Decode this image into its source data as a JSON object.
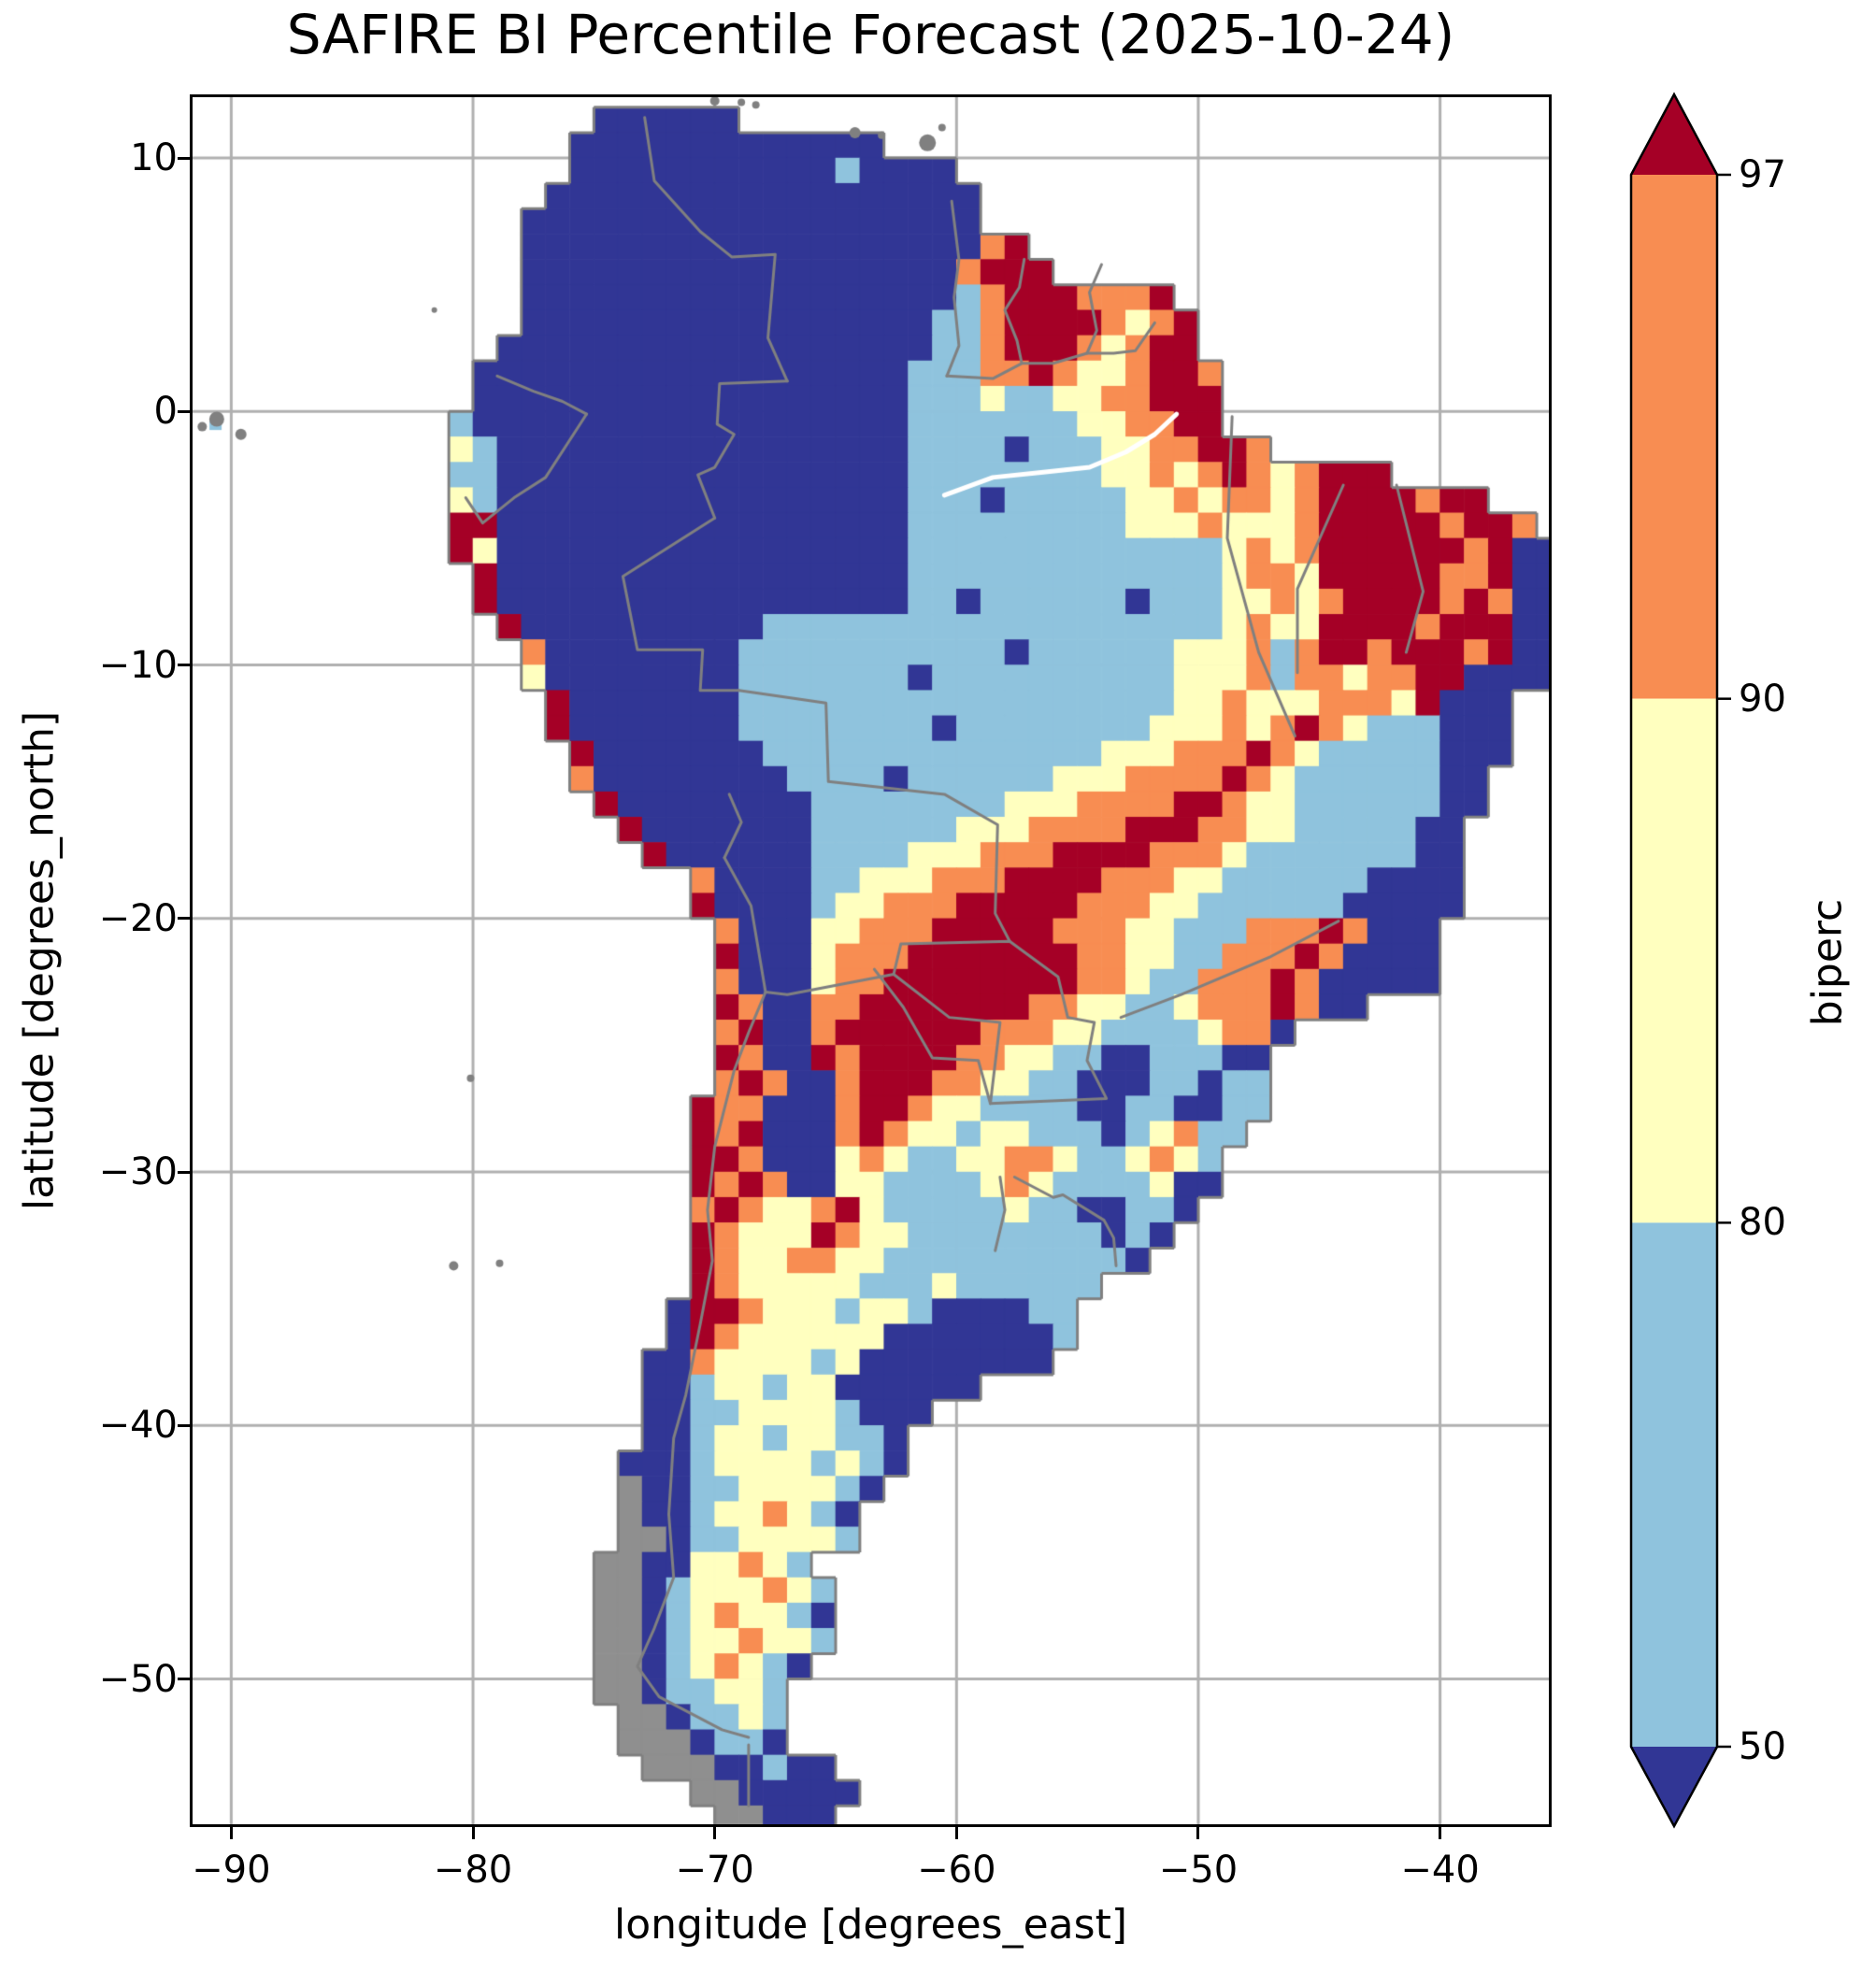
{
  "title": "SAFIRE BI Percentile Forecast (2025-10-24)",
  "axes": {
    "xlabel": "longitude [degrees_east]",
    "ylabel": "latitude [degrees_north]",
    "xticks": [
      -90,
      -80,
      -70,
      -60,
      -50,
      -40
    ],
    "yticks": [
      10,
      0,
      -10,
      -20,
      -30,
      -40,
      -50
    ]
  },
  "colorbar": {
    "label": "biperc",
    "levels": [
      "97",
      "90",
      "80",
      "50"
    ],
    "extend": "both"
  },
  "chart_data": {
    "type": "heatmap",
    "title": "SAFIRE BI Percentile Forecast (2025-10-24)",
    "xlabel": "longitude [degrees_east]",
    "ylabel": "latitude [degrees_north]",
    "variable": "biperc",
    "xlim": [
      -91.6,
      -35.5
    ],
    "ylim": [
      -55.73,
      12.4
    ],
    "xticks": [
      -90,
      -80,
      -70,
      -60,
      -50,
      -40
    ],
    "yticks": [
      10,
      0,
      -10,
      -20,
      -30,
      -40,
      -50
    ],
    "grid_on": true,
    "levels": [
      50,
      80,
      90,
      97
    ],
    "classes": [
      {
        "range": "< 50",
        "color": "#313695"
      },
      {
        "range": "50-80",
        "color": "#8fc3dd"
      },
      {
        "range": "80-90",
        "color": "#ffffbf"
      },
      {
        "range": "90-97",
        "color": "#f88d52"
      },
      {
        "range": "> 97",
        "color": "#a50026"
      }
    ],
    "colors": {
      "grid": "#b0b0b0",
      "coast": "#808080",
      "border": "#808080",
      "no_data_land": "#8f8f8f",
      "frame": "#000000",
      "sea": "#ffffff"
    },
    "raster": {
      "lon0": -82,
      "lat0": 12,
      "dlon": 1,
      "dlat": -1,
      "ncols": 47,
      "nrows": 68,
      "legend": {
        ".": "sea",
        "B": "<50",
        "b": "50-80",
        "y": "80-90",
        "o": "90-97",
        "r": ">97",
        "g": "no-data-land"
      },
      "cell_colors": {
        "B": "#313695",
        "b": "#8fc3dd",
        "y": "#ffffbf",
        "o": "#f88d52",
        "r": "#a50026",
        "g": "#8f8f8f"
      },
      "rows_rle": [
        "7.6B34.",
        "6.13B28.",
        "6.11B1b4B25.",
        "5.18B24.",
        "4.19B24.",
        "4.19B1o1r22.",
        "4.18B1o3r21.",
        "4.18B1b1o3r3o1r16.",
        "4.17B2b1o4r1o1y1o1r15.",
        "3.18B2b1o3r1o1y1o2r15.",
        "2.18B3b2o1r1o2y1o2r1o14.",
        "2.18B3b1y2b2y2o3r14.",
        "1.1b18B7b2y2o2r14.",
        "1.1y1b17B4b1B3b2y2o2r1o12.",
        "1.2b17B8b2y1o1y1o1r1o1y1o3r7.",
        "1.1y1b17B3b1B5b2y1o1y2o1y1o4r1o2r3.",
        "1.2r17B9b3y1o3y1o5r1o2r1o1.",
        "1.1r1y17B13b1y1o1y1o6r1o1r2B",
        "2.1r17B13b1y2o1y5r2o1r2B",
        "2.1r17B2b1B6b1B3b2y1o1y1o4r1o1r1o2B",
        "3.1r10B19b1y1o2y4r1o3r2B",
        "4.1o8B11b1B6b3y1o1b1o2r1o3r1o1r2B",
        "4.1y8B7b1B10b3y1o1b2o1y2o2r4B",
        "5.1r7B18b2y1o3y3o1y1r3B2.",
        "5.1r7B8b1B8b3y1o1y1o1r1o1y3b3B2.",
        "6.1r7B14b3y3o1r1o1y5b3B2.",
        "6.1o8B4b1B6b3y4o1r1o1y6b2B3.",
        "7.1r8B8b3y4o2r1o2y6b2B3.",
        "8.1r7B6b3y4o3r2o2y5b2B4.",
        "9.1r6B4b3y3o4r3o1y7b2B4.",
        "11.1o4B2b3y3o4r3o2y6b4B4.",
        "11.1r4B1b2y3o5r3o2y6b5B4.",
        "12.1o3B2y3o5r3o2y3b3o1r1o3B5.",
        "12.1r3B1y3o7r2o2y2b3o1r1o4B5.",
        "12.1o3B1y2o8r2o1y2b3o1r1o5B5.",
        "12.1r1o2B2o7r2o2y2b1y3o1r1o2B8.",
        "12.1o1r2B1o6r3o2y4b1y2o1B11.",
        "12.1r1o2B1r1o4r2o2y2b2B3b2B12.",
        "12.1o1r1o2B1o3r2o2y2b3B2b1B2b12.",
        "11.1r2o3B1o2r1o2y4b2B2b2B2b12.",
        "11.1r1o1r3B1o1r1o2y1b2y3b1B1b1y1o2b13.",
        "11.2r1o3B1y1o1y2b2y2o1y2b1y1o1y1b14.",
        "11.1r1o1r1o2B2y4b1y1o1y4b1y2B14.",
        "11.1o1r1o2y1o1r1y5b1y2b2B2b1B15.",
        "11.1r1o3y1r1o2y8b1B1b1B16.",
        "11.1r1o2y2o2y10b1B17.",
        "11.1r1o5y3b1y6b19.",
        "10.1B2r1o3y1b2y1b4B2b20.",
        "10.1B1r1o6y7B1b20.",
        "9.2B1o4y1b1y8B21.",
        "9.2B1b2y1b2y6B24.",
        "9.2B2b4y1b3B26.",
        "9.2B1b2y1b2y2b1B27.",
        "8.3B1b4y1b1y1b1B27.",
        "8.1g2B2b4y1b1B28.",
        "8.1g2B1b2y1o1y1b1B29.",
        "8.2g1B2b4y1b29.",
        "7.2g2B2y1o1y1b31.",
        "7.2g1B1b3y1o1y1b30.",
        "7.2g1B1b1y1o2y1b1B30.",
        "7.2g1B1b2y1o2y1b30.",
        "7.2g1B1b1y1o1y1b1B31.",
        "7.2g1B2b2y1b32.",
        "8.2g1B2b1y1b32.",
        "8.3g1B2b1B32.",
        "9.3g2B1b2B30.",
        "11.2g5B29.",
        "12.2g3B30."
      ]
    },
    "basemap": {
      "border_lines": [
        [
          [
            -72.9,
            11.6
          ],
          [
            -72.5,
            9.1
          ],
          [
            -70.6,
            7.1
          ],
          [
            -69.3,
            6.1
          ],
          [
            -67.5,
            6.2
          ],
          [
            -67.8,
            2.9
          ],
          [
            -67.0,
            1.2
          ]
        ],
        [
          [
            -79.0,
            1.4
          ],
          [
            -77.5,
            0.8
          ],
          [
            -76.3,
            0.4
          ],
          [
            -75.3,
            -0.1
          ]
        ],
        [
          [
            -80.3,
            -3.4
          ],
          [
            -79.6,
            -4.4
          ],
          [
            -78.3,
            -3.4
          ],
          [
            -77.0,
            -2.6
          ],
          [
            -75.3,
            -0.1
          ]
        ],
        [
          [
            -67.0,
            1.2
          ],
          [
            -69.8,
            1.1
          ],
          [
            -69.9,
            -0.5
          ],
          [
            -69.2,
            -0.9
          ],
          [
            -70.0,
            -2.2
          ],
          [
            -70.7,
            -2.5
          ],
          [
            -70.0,
            -4.2
          ]
        ],
        [
          [
            -70.0,
            -4.2
          ],
          [
            -73.8,
            -6.5
          ],
          [
            -73.2,
            -9.4
          ],
          [
            -70.5,
            -9.4
          ],
          [
            -70.6,
            -11.0
          ],
          [
            -69.0,
            -11.0
          ]
        ],
        [
          [
            -69.4,
            -15.1
          ],
          [
            -68.9,
            -16.2
          ],
          [
            -69.6,
            -17.6
          ]
        ],
        [
          [
            -69.0,
            -11.0
          ],
          [
            -65.4,
            -11.5
          ],
          [
            -65.3,
            -14.6
          ],
          [
            -60.5,
            -15.1
          ],
          [
            -58.3,
            -16.3
          ],
          [
            -58.4,
            -19.8
          ],
          [
            -57.8,
            -20.9
          ]
        ],
        [
          [
            -69.6,
            -17.6
          ],
          [
            -68.5,
            -19.5
          ],
          [
            -67.9,
            -22.9
          ],
          [
            -67.0,
            -23.0
          ],
          [
            -62.6,
            -22.2
          ]
        ],
        [
          [
            -57.8,
            -20.9
          ],
          [
            -55.8,
            -22.3
          ],
          [
            -55.4,
            -23.9
          ],
          [
            -54.3,
            -24.1
          ],
          [
            -54.6,
            -25.6
          ],
          [
            -53.8,
            -27.1
          ],
          [
            -58.6,
            -27.3
          ],
          [
            -58.2,
            -24.1
          ],
          [
            -60.3,
            -23.9
          ],
          [
            -62.6,
            -22.2
          ],
          [
            -62.3,
            -21.0
          ],
          [
            -57.8,
            -20.9
          ]
        ],
        [
          [
            -67.9,
            -22.9
          ],
          [
            -68.6,
            -24.5
          ],
          [
            -69.2,
            -26.0
          ],
          [
            -70.0,
            -29.0
          ],
          [
            -70.3,
            -31.5
          ],
          [
            -70.1,
            -33.5
          ],
          [
            -70.6,
            -36.0
          ],
          [
            -71.2,
            -38.8
          ],
          [
            -71.7,
            -40.5
          ],
          [
            -71.9,
            -43.5
          ],
          [
            -71.7,
            -46.0
          ],
          [
            -72.5,
            -48.0
          ],
          [
            -73.2,
            -49.5
          ],
          [
            -72.3,
            -50.7
          ],
          [
            -69.7,
            -52.0
          ],
          [
            -68.6,
            -52.3
          ]
        ],
        [
          [
            -68.6,
            -52.6
          ],
          [
            -68.6,
            -55.0
          ]
        ],
        [
          [
            -60.2,
            8.3
          ],
          [
            -59.9,
            6.0
          ],
          [
            -60.1,
            4.5
          ],
          [
            -59.9,
            2.6
          ],
          [
            -60.4,
            1.4
          ]
        ],
        [
          [
            -57.2,
            6.0
          ],
          [
            -57.4,
            4.9
          ],
          [
            -58.0,
            4.0
          ],
          [
            -57.5,
            2.8
          ],
          [
            -57.3,
            1.9
          ]
        ],
        [
          [
            -54.0,
            5.8
          ],
          [
            -54.5,
            4.7
          ],
          [
            -54.2,
            3.2
          ],
          [
            -54.6,
            2.3
          ]
        ],
        [
          [
            -60.4,
            1.4
          ],
          [
            -58.5,
            1.3
          ],
          [
            -57.3,
            1.9
          ],
          [
            -56.0,
            1.9
          ],
          [
            -54.6,
            2.3
          ],
          [
            -53.5,
            2.3
          ],
          [
            -52.6,
            2.4
          ],
          [
            -51.8,
            3.5
          ]
        ],
        [
          [
            -57.6,
            -30.2
          ],
          [
            -56.0,
            -31.0
          ],
          [
            -55.6,
            -30.9
          ],
          [
            -53.9,
            -31.9
          ],
          [
            -53.5,
            -32.6
          ],
          [
            -53.4,
            -33.7
          ]
        ],
        [
          [
            -58.2,
            -30.2
          ],
          [
            -58.0,
            -31.5
          ],
          [
            -58.4,
            -33.1
          ]
        ],
        [
          [
            -48.6,
            -0.2
          ],
          [
            -48.8,
            -5.0
          ],
          [
            -47.5,
            -9.5
          ],
          [
            -46.0,
            -12.8
          ]
        ],
        [
          [
            -44.0,
            -2.9
          ],
          [
            -45.9,
            -7.0
          ],
          [
            -45.9,
            -10.3
          ]
        ],
        [
          [
            -41.8,
            -2.9
          ],
          [
            -40.7,
            -7.1
          ],
          [
            -41.4,
            -9.5
          ]
        ],
        [
          [
            -44.2,
            -20.1
          ],
          [
            -47.0,
            -21.5
          ],
          [
            -50.7,
            -23.0
          ],
          [
            -53.2,
            -23.9
          ]
        ],
        [
          [
            -63.4,
            -22.0
          ],
          [
            -62.2,
            -23.5
          ],
          [
            -61.0,
            -25.5
          ],
          [
            -59.1,
            -25.6
          ],
          [
            -58.6,
            -27.3
          ]
        ]
      ],
      "islands": [
        [
          -90.6,
          -0.3,
          8
        ],
        [
          -89.6,
          -0.9,
          6
        ],
        [
          -91.2,
          -0.6,
          5
        ],
        [
          -80.8,
          -33.7,
          5
        ],
        [
          -78.9,
          -33.6,
          4
        ],
        [
          -80.1,
          -26.3,
          4
        ],
        [
          -81.6,
          4.0,
          3
        ],
        [
          -70.0,
          12.25,
          5
        ],
        [
          -68.9,
          12.2,
          4
        ],
        [
          -68.3,
          12.1,
          4
        ],
        [
          -64.2,
          11.0,
          6
        ],
        [
          -63.1,
          10.9,
          4
        ],
        [
          -61.2,
          10.6,
          9
        ],
        [
          -60.6,
          11.2,
          4
        ]
      ],
      "river": [
        [
          -60.5,
          -3.3
        ],
        [
          -58.5,
          -2.6
        ],
        [
          -56.5,
          -2.4
        ],
        [
          -54.5,
          -2.2
        ],
        [
          -53.0,
          -1.6
        ],
        [
          -51.8,
          -0.9
        ],
        [
          -50.9,
          -0.1
        ]
      ]
    }
  }
}
